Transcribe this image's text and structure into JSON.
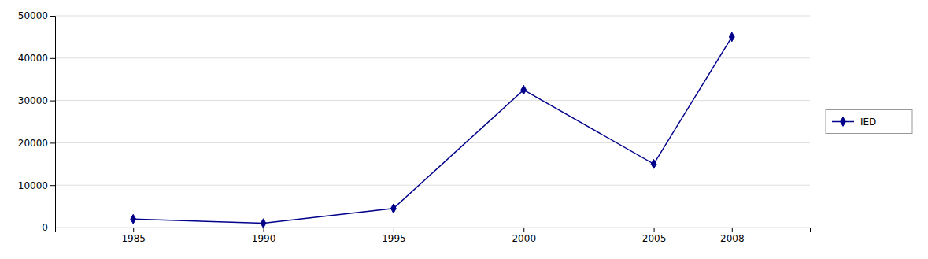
{
  "chart_data": {
    "type": "line",
    "x": [
      1985,
      1990,
      1995,
      2000,
      2005,
      2008
    ],
    "series": [
      {
        "name": "IED",
        "color": "#00008B",
        "marker": "diamond",
        "values": [
          2000,
          1000,
          4500,
          32500,
          15000,
          45000
        ]
      }
    ],
    "xlim": [
      1982,
      2011
    ],
    "xticks": [
      1985,
      1990,
      1995,
      2000,
      2005,
      2008
    ],
    "ylim": [
      0,
      50000
    ],
    "yticks": [
      0,
      10000,
      20000,
      30000,
      40000,
      50000
    ],
    "grid": true,
    "legend": "right"
  }
}
